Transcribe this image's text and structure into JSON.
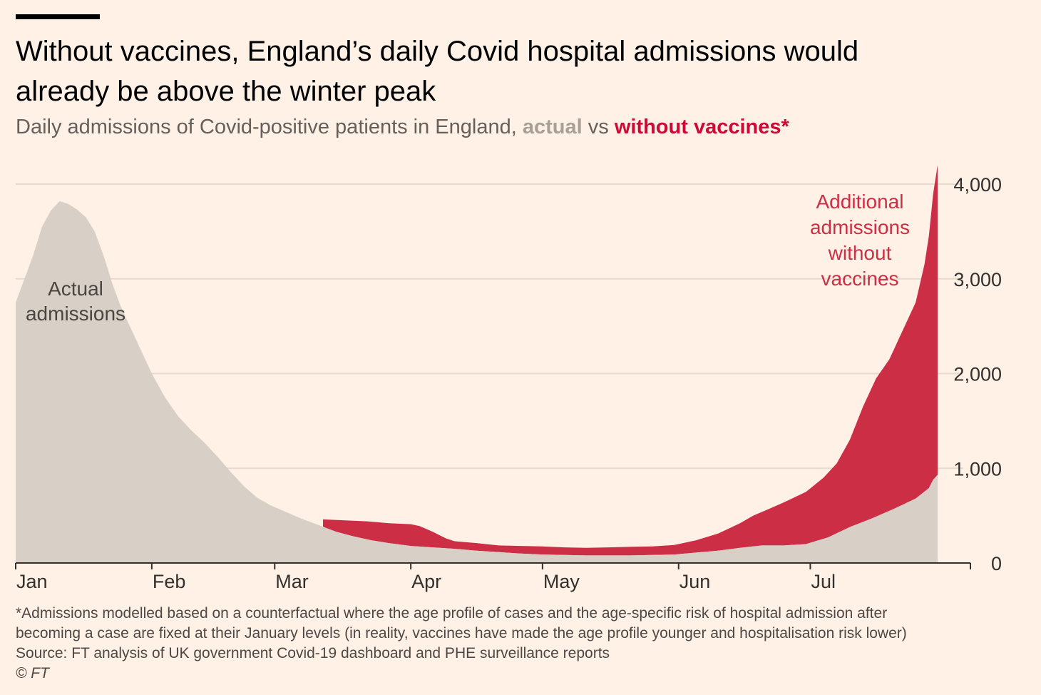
{
  "header": {
    "title": "Without vaccines, England’s daily Covid hospital admissions would already be above the winter peak",
    "subtitle_prefix": "Daily admissions of Covid-positive patients in England, ",
    "subtitle_actual": "actual",
    "subtitle_vs": " vs ",
    "subtitle_without": "without vaccines*"
  },
  "footnote": {
    "line1": "*Admissions modelled based on a counterfactual where the age profile of cases and the age-specific risk of hospital admission after",
    "line2": "becoming a case are fixed at their January levels (in reality, vaccines have made the age profile younger and hospitalisation risk lower)",
    "source": "Source: FT analysis of UK government Covid-19 dashboard and PHE surveillance reports",
    "copyright": "© FT"
  },
  "colors": {
    "actual": "#d8cfc6",
    "without": "#cc2e45",
    "grid": "#e6d9ce",
    "axis": "#33302e",
    "actual_label": "#4a4542",
    "without_label": "#cc2e45"
  },
  "chart_data": {
    "type": "area",
    "x_axis": {
      "ticks": [
        "Jan",
        "Feb",
        "Mar",
        "Apr",
        "May",
        "Jun",
        "Jul"
      ],
      "tick_days": [
        0,
        31,
        59,
        90,
        120,
        151,
        181
      ],
      "range_days": [
        0,
        212
      ]
    },
    "y_axis": {
      "range": [
        0,
        4200
      ],
      "ticks": [
        0,
        1000,
        2000,
        3000,
        4000
      ],
      "tick_labels": [
        "0",
        "1,000",
        "2,000",
        "3,000",
        "4,000"
      ],
      "position": "right",
      "grid": true
    },
    "annotations": {
      "actual_label": [
        "Actual",
        "admissions"
      ],
      "additional_label": [
        "Additional",
        "admissions",
        "without",
        "vaccines"
      ]
    },
    "series": [
      {
        "key": "actual",
        "points": [
          [
            0,
            2750
          ],
          [
            2,
            3000
          ],
          [
            4,
            3250
          ],
          [
            6,
            3550
          ],
          [
            8,
            3720
          ],
          [
            10,
            3820
          ],
          [
            12,
            3790
          ],
          [
            14,
            3730
          ],
          [
            16,
            3650
          ],
          [
            18,
            3500
          ],
          [
            20,
            3250
          ],
          [
            22,
            2950
          ],
          [
            24,
            2700
          ],
          [
            26,
            2500
          ],
          [
            28,
            2300
          ],
          [
            31,
            2000
          ],
          [
            34,
            1750
          ],
          [
            37,
            1550
          ],
          [
            40,
            1400
          ],
          [
            43,
            1270
          ],
          [
            46,
            1120
          ],
          [
            49,
            960
          ],
          [
            52,
            810
          ],
          [
            55,
            690
          ],
          [
            58,
            610
          ],
          [
            62,
            530
          ],
          [
            65,
            470
          ],
          [
            69,
            400
          ],
          [
            73,
            330
          ],
          [
            77,
            280
          ],
          [
            81,
            240
          ],
          [
            85,
            210
          ],
          [
            90,
            180
          ],
          [
            95,
            165
          ],
          [
            100,
            150
          ],
          [
            105,
            130
          ],
          [
            110,
            115
          ],
          [
            115,
            100
          ],
          [
            120,
            90
          ],
          [
            125,
            85
          ],
          [
            130,
            80
          ],
          [
            135,
            80
          ],
          [
            140,
            80
          ],
          [
            145,
            85
          ],
          [
            150,
            90
          ],
          [
            155,
            110
          ],
          [
            160,
            130
          ],
          [
            165,
            160
          ],
          [
            170,
            185
          ],
          [
            175,
            185
          ],
          [
            180,
            200
          ],
          [
            185,
            270
          ],
          [
            190,
            380
          ],
          [
            195,
            470
          ],
          [
            200,
            570
          ],
          [
            205,
            680
          ],
          [
            208,
            790
          ],
          [
            209,
            880
          ],
          [
            210,
            930
          ]
        ]
      },
      {
        "key": "without",
        "points": [
          [
            70,
            460
          ],
          [
            75,
            450
          ],
          [
            80,
            440
          ],
          [
            85,
            420
          ],
          [
            90,
            410
          ],
          [
            92,
            390
          ],
          [
            95,
            330
          ],
          [
            98,
            260
          ],
          [
            100,
            230
          ],
          [
            105,
            210
          ],
          [
            110,
            185
          ],
          [
            115,
            180
          ],
          [
            120,
            175
          ],
          [
            125,
            165
          ],
          [
            130,
            160
          ],
          [
            135,
            165
          ],
          [
            140,
            170
          ],
          [
            145,
            175
          ],
          [
            150,
            190
          ],
          [
            155,
            240
          ],
          [
            160,
            310
          ],
          [
            165,
            420
          ],
          [
            168,
            500
          ],
          [
            171,
            560
          ],
          [
            175,
            640
          ],
          [
            180,
            750
          ],
          [
            184,
            900
          ],
          [
            187,
            1050
          ],
          [
            190,
            1300
          ],
          [
            193,
            1650
          ],
          [
            196,
            1950
          ],
          [
            199,
            2150
          ],
          [
            202,
            2450
          ],
          [
            205,
            2750
          ],
          [
            207,
            3150
          ],
          [
            208,
            3450
          ],
          [
            209,
            3900
          ],
          [
            210,
            4200
          ]
        ]
      }
    ]
  }
}
